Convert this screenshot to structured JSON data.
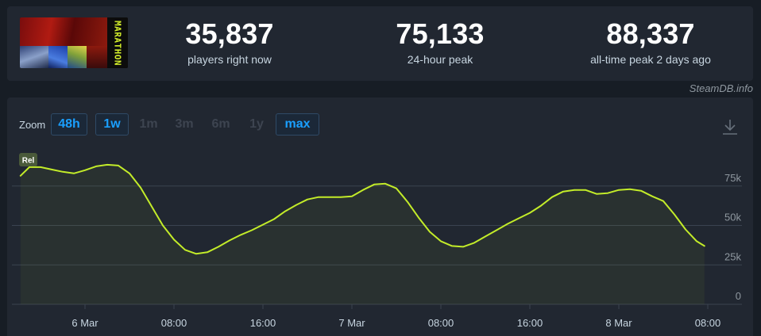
{
  "game": {
    "logo_text": "MARATHON"
  },
  "stats": [
    {
      "value": "35,837",
      "label": "players right now"
    },
    {
      "value": "75,133",
      "label": "24-hour peak"
    },
    {
      "value": "88,337",
      "label": "all-time peak 2 days ago"
    }
  ],
  "credit": "SteamDB.info",
  "zoom": {
    "label": "Zoom",
    "buttons": [
      {
        "label": "48h",
        "active": true
      },
      {
        "label": "1w",
        "active": true
      },
      {
        "label": "1m",
        "active": false
      },
      {
        "label": "3m",
        "active": false
      },
      {
        "label": "6m",
        "active": false
      },
      {
        "label": "1y",
        "active": false
      },
      {
        "label": "max",
        "active": true
      }
    ]
  },
  "colors": {
    "line": "#c3ec29",
    "accent": "#1a9fff",
    "background": "#212731",
    "grid": "#3a4350"
  },
  "chart_data": {
    "type": "line",
    "title": "",
    "xlabel": "",
    "ylabel": "",
    "x_ticks": [
      "6 Mar",
      "08:00",
      "16:00",
      "7 Mar",
      "08:00",
      "16:00",
      "8 Mar",
      "08:00"
    ],
    "y_ticks": [
      "0",
      "25k",
      "50k",
      "75k"
    ],
    "ylim": [
      0,
      100000
    ],
    "grid": true,
    "annotation": "Rel",
    "series": [
      {
        "name": "",
        "x_hours": [
          -5.8,
          -5,
          -4,
          -3,
          -2,
          -1,
          0,
          1,
          2,
          3,
          4,
          5,
          6,
          7,
          8,
          9,
          10,
          11,
          12,
          13,
          14,
          15,
          16,
          17,
          18,
          19,
          20,
          21,
          22,
          23,
          24,
          25,
          26,
          27,
          28,
          29,
          30,
          31,
          32,
          33,
          34,
          35,
          36,
          37,
          38,
          39,
          40,
          41,
          42,
          43,
          44,
          45,
          46,
          47,
          48,
          49,
          50,
          51,
          52,
          53,
          54,
          55,
          55.7
        ],
        "values": [
          81500,
          87000,
          87000,
          85500,
          84000,
          83000,
          85000,
          87500,
          88500,
          88000,
          83000,
          74000,
          62000,
          50000,
          41000,
          34500,
          32000,
          33000,
          36500,
          40500,
          44000,
          47000,
          50500,
          54000,
          59000,
          63000,
          66500,
          68000,
          68000,
          68000,
          68500,
          72500,
          76000,
          76500,
          73500,
          65000,
          55000,
          46000,
          40000,
          37000,
          36500,
          39000,
          43000,
          47000,
          51000,
          54500,
          58000,
          62500,
          68000,
          71500,
          72500,
          72500,
          70000,
          70500,
          72500,
          73000,
          72000,
          68500,
          65500,
          57000,
          47500,
          40000,
          37000
        ]
      }
    ]
  }
}
